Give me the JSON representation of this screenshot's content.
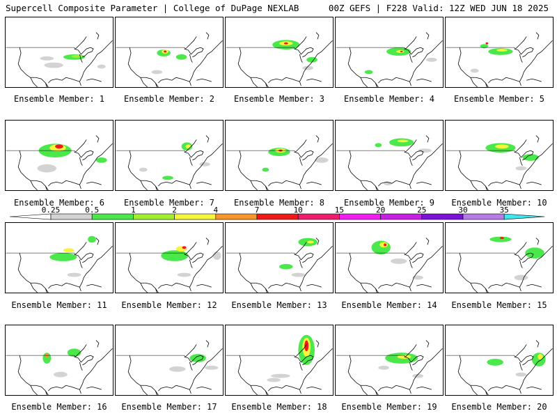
{
  "header": {
    "left_title": "Supercell Composite Parameter | College of DuPage NEXLAB",
    "right_title": "00Z GEFS | F228 Valid: 12Z WED JUN 18 2025"
  },
  "colorbar": {
    "levels": [
      "0.25",
      "0.5",
      "1",
      "2",
      "4",
      "7",
      "10",
      "15",
      "20",
      "25",
      "30",
      "35"
    ],
    "colors": [
      "#d3d3d3",
      "#4be84b",
      "#a0f030",
      "#f5f53c",
      "#f7942a",
      "#ef1a1a",
      "#ee1e6e",
      "#f01ef0",
      "#c71ee6",
      "#7b12dc",
      "#b67be6",
      "#3ee6ee"
    ]
  },
  "colors": {
    "c025": "#d3d3d3",
    "c05": "#4be84b",
    "c1": "#a0f030",
    "c2": "#f5f53c",
    "c4": "#f7942a",
    "c7": "#ef1a1a",
    "c10": "#ee1e6e"
  },
  "members": [
    {
      "label": "Ensemble Member: 1"
    },
    {
      "label": "Ensemble Member: 2"
    },
    {
      "label": "Ensemble Member: 3"
    },
    {
      "label": "Ensemble Member: 4"
    },
    {
      "label": "Ensemble Member: 5"
    },
    {
      "label": "Ensemble Member: 6"
    },
    {
      "label": "Ensemble Member: 7"
    },
    {
      "label": "Ensemble Member: 8"
    },
    {
      "label": "Ensemble Member: 9"
    },
    {
      "label": "Ensemble Member: 10"
    },
    {
      "label": "Ensemble Member: 11"
    },
    {
      "label": "Ensemble Member: 12"
    },
    {
      "label": "Ensemble Member: 13"
    },
    {
      "label": "Ensemble Member: 14"
    },
    {
      "label": "Ensemble Member: 15"
    },
    {
      "label": "Ensemble Member: 16"
    },
    {
      "label": "Ensemble Member: 17"
    },
    {
      "label": "Ensemble Member: 18"
    },
    {
      "label": "Ensemble Member: 19"
    },
    {
      "label": "Ensemble Member: 20"
    }
  ]
}
